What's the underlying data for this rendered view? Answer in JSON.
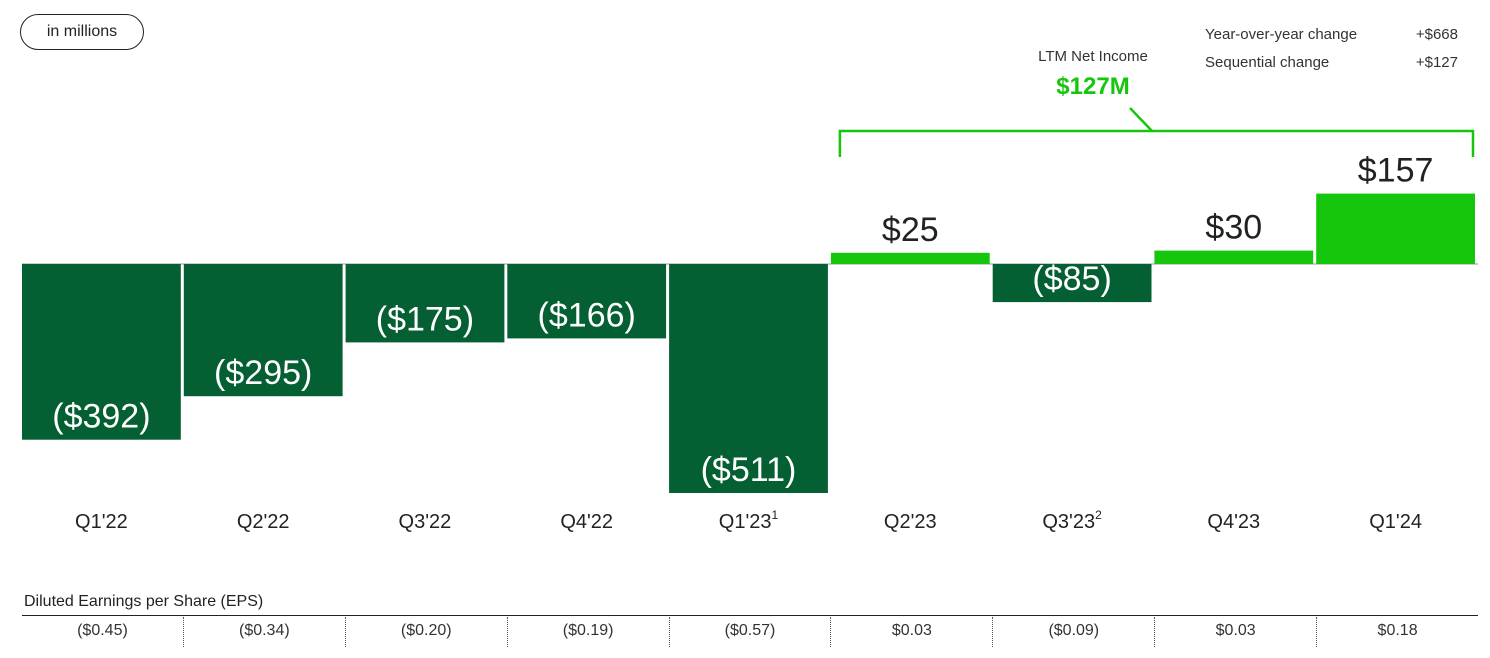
{
  "unit_label": "in millions",
  "changes": [
    {
      "label": "Year-over-year change",
      "value": "+$668"
    },
    {
      "label": "Sequential change",
      "value": "+$127"
    }
  ],
  "ltm": {
    "label": "LTM Net Income",
    "value": "$127M"
  },
  "colors": {
    "negative": "#045f33",
    "positive": "#16c60c",
    "bracket": "#16c60c"
  },
  "chart_data": {
    "type": "bar",
    "categories": [
      "Q1'22",
      "Q2'22",
      "Q3'22",
      "Q4'22",
      "Q1'23",
      "Q2'23",
      "Q3'23",
      "Q4'23",
      "Q1'24"
    ],
    "category_superscripts": [
      "",
      "",
      "",
      "",
      "1",
      "",
      "2",
      "",
      ""
    ],
    "values": [
      -392,
      -295,
      -175,
      -166,
      -511,
      25,
      -85,
      30,
      157
    ],
    "value_labels": [
      "($392)",
      "($295)",
      "($175)",
      "($166)",
      "($511)",
      "$25",
      "($85)",
      "$30",
      "$157"
    ],
    "ltm_bracket_categories": [
      "Q2'23",
      "Q3'23",
      "Q4'23",
      "Q1'24"
    ]
  },
  "eps": {
    "title": "Diluted Earnings per Share (EPS)",
    "values": [
      "($0.45)",
      "($0.34)",
      "($0.20)",
      "($0.19)",
      "($0.57)",
      "$0.03",
      "($0.09)",
      "$0.03",
      "$0.18"
    ]
  }
}
